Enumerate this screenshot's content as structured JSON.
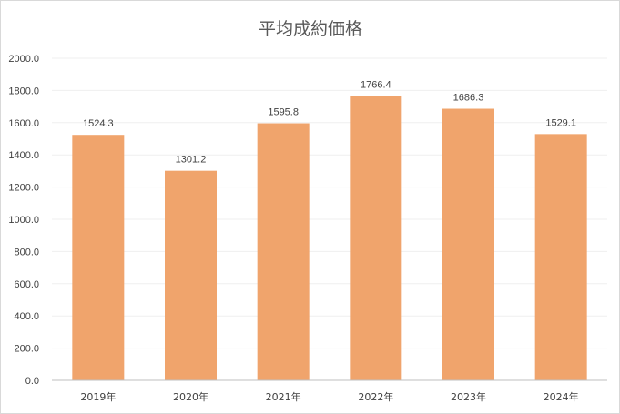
{
  "chart_data": {
    "type": "bar",
    "title": "平均成約価格",
    "categories": [
      "2019年",
      "2020年",
      "2021年",
      "2022年",
      "2023年",
      "2024年"
    ],
    "values": [
      1524.3,
      1301.2,
      1595.8,
      1766.4,
      1686.3,
      1529.1
    ],
    "value_labels": [
      "1524.3",
      "1301.2",
      "1595.8",
      "1766.4",
      "1686.3",
      "1529.1"
    ],
    "yticks": [
      "0.0",
      "200.0",
      "400.0",
      "600.0",
      "800.0",
      "1000.0",
      "1200.0",
      "1400.0",
      "1600.0",
      "1800.0",
      "2000.0"
    ],
    "ylim": [
      0,
      2000
    ],
    "xlabel": "",
    "ylabel": "",
    "grid": true,
    "legend": "none",
    "bar_color": "#f0a46c",
    "grid_color": "#efefef",
    "axis_color": "#bfbfbf"
  }
}
